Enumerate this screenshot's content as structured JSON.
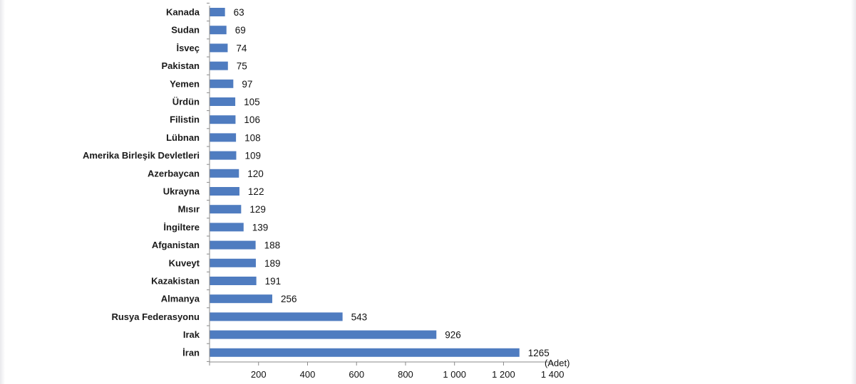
{
  "chart_data": {
    "type": "bar",
    "orientation": "horizontal",
    "categories": [
      "Kanada",
      "Sudan",
      "İsveç",
      "Pakistan",
      "Yemen",
      "Ürdün",
      "Filistin",
      "Lübnan",
      "Amerika Birleşik Devletleri",
      "Azerbaycan",
      "Ukrayna",
      "Mısır",
      "İngiltere",
      "Afganistan",
      "Kuveyt",
      "Kazakistan",
      "Almanya",
      "Rusya Federasyonu",
      "Irak",
      "İran"
    ],
    "values": [
      63,
      69,
      74,
      75,
      97,
      105,
      106,
      108,
      109,
      120,
      122,
      129,
      139,
      188,
      189,
      191,
      256,
      543,
      926,
      1265
    ],
    "value_labels": [
      "63",
      "69",
      "74",
      "75",
      "97",
      "105",
      "106",
      "108",
      "109",
      "120",
      "122",
      "129",
      "139",
      "188",
      "189",
      "191",
      "256",
      "543",
      "926",
      "1265"
    ],
    "xlim": [
      0,
      1400
    ],
    "xticks": [
      200,
      400,
      600,
      800,
      1000,
      1200,
      1400
    ],
    "xtick_labels": [
      "200",
      "400",
      "600",
      "800",
      "1 000",
      "1 200",
      "1 400"
    ],
    "unit_label": "(Adet)",
    "bar_color": "#4f7cc0",
    "grid": false,
    "legend": "none"
  }
}
